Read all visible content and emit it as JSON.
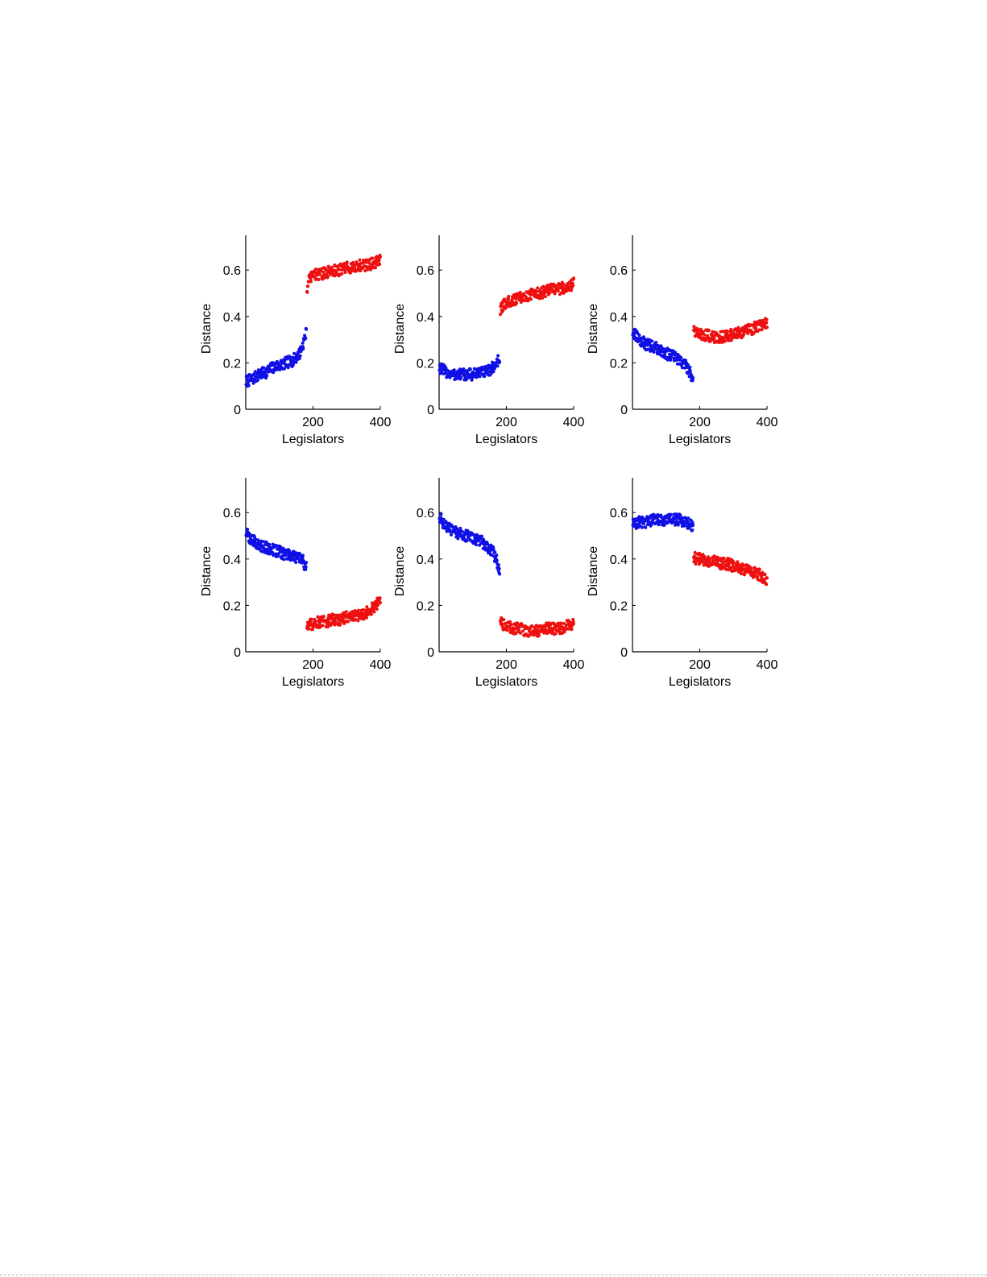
{
  "colors": {
    "democrat": "#1010e6",
    "republican": "#ee1010",
    "axis": "#000000"
  },
  "chart_data": [
    {
      "type": "scatter",
      "xlabel": "Legislators",
      "ylabel": "Distance",
      "xlim": [
        0,
        400
      ],
      "ylim": [
        0,
        0.75
      ],
      "xticks": [
        200,
        400
      ],
      "xtick_labels": [
        "200",
        "400"
      ],
      "yticks": [
        0,
        0.2,
        0.4,
        0.6
      ],
      "ytick_labels": [
        "0",
        "0.2",
        "0.4",
        "0.6"
      ],
      "grid": false,
      "series": [
        {
          "color": "blue",
          "x": [
            1,
            20,
            40,
            60,
            80,
            100,
            120,
            140,
            160,
            170,
            180
          ],
          "y": [
            0.12,
            0.13,
            0.15,
            0.16,
            0.18,
            0.19,
            0.2,
            0.21,
            0.24,
            0.28,
            0.33
          ]
        },
        {
          "color": "red",
          "x": [
            182,
            190,
            200,
            220,
            240,
            260,
            280,
            300,
            320,
            340,
            360,
            380,
            400
          ],
          "y": [
            0.52,
            0.56,
            0.58,
            0.58,
            0.59,
            0.6,
            0.6,
            0.61,
            0.61,
            0.62,
            0.62,
            0.63,
            0.64
          ]
        }
      ]
    },
    {
      "type": "scatter",
      "xlabel": "Legislators",
      "ylabel": "Distance",
      "xlim": [
        0,
        400
      ],
      "ylim": [
        0,
        0.75
      ],
      "xticks": [
        200,
        400
      ],
      "xtick_labels": [
        "200",
        "400"
      ],
      "yticks": [
        0,
        0.2,
        0.4,
        0.6
      ],
      "ytick_labels": [
        "0",
        "0.2",
        "0.4",
        "0.6"
      ],
      "grid": false,
      "series": [
        {
          "color": "blue",
          "x": [
            1,
            20,
            40,
            60,
            80,
            100,
            120,
            140,
            160,
            170,
            180
          ],
          "y": [
            0.18,
            0.16,
            0.15,
            0.15,
            0.15,
            0.15,
            0.16,
            0.16,
            0.18,
            0.2,
            0.22
          ]
        },
        {
          "color": "red",
          "x": [
            182,
            190,
            200,
            220,
            240,
            260,
            280,
            300,
            320,
            340,
            360,
            380,
            400
          ],
          "y": [
            0.42,
            0.45,
            0.46,
            0.47,
            0.48,
            0.49,
            0.5,
            0.5,
            0.51,
            0.52,
            0.52,
            0.53,
            0.54
          ]
        }
      ]
    },
    {
      "type": "scatter",
      "xlabel": "Legislators",
      "ylabel": "Distance",
      "xlim": [
        0,
        400
      ],
      "ylim": [
        0,
        0.75
      ],
      "xticks": [
        200,
        400
      ],
      "xtick_labels": [
        "200",
        "400"
      ],
      "yticks": [
        0,
        0.2,
        0.4,
        0.6
      ],
      "ytick_labels": [
        "0",
        "0.2",
        "0.4",
        "0.6"
      ],
      "grid": false,
      "series": [
        {
          "color": "blue",
          "x": [
            1,
            20,
            40,
            60,
            80,
            100,
            120,
            140,
            160,
            170,
            180
          ],
          "y": [
            0.33,
            0.3,
            0.28,
            0.27,
            0.26,
            0.24,
            0.23,
            0.21,
            0.19,
            0.16,
            0.13
          ]
        },
        {
          "color": "red",
          "x": [
            182,
            190,
            200,
            220,
            240,
            260,
            280,
            300,
            320,
            340,
            360,
            380,
            400
          ],
          "y": [
            0.35,
            0.33,
            0.32,
            0.32,
            0.31,
            0.31,
            0.32,
            0.32,
            0.33,
            0.34,
            0.35,
            0.36,
            0.37
          ]
        }
      ]
    },
    {
      "type": "scatter",
      "xlabel": "Legislators",
      "ylabel": "Distance",
      "xlim": [
        0,
        400
      ],
      "ylim": [
        0,
        0.75
      ],
      "xticks": [
        200,
        400
      ],
      "xtick_labels": [
        "200",
        "400"
      ],
      "yticks": [
        0,
        0.2,
        0.4,
        0.6
      ],
      "ytick_labels": [
        "0",
        "0.2",
        "0.4",
        "0.6"
      ],
      "grid": false,
      "series": [
        {
          "color": "blue",
          "x": [
            1,
            20,
            40,
            60,
            80,
            100,
            120,
            140,
            160,
            170,
            180
          ],
          "y": [
            0.51,
            0.48,
            0.46,
            0.45,
            0.44,
            0.43,
            0.42,
            0.41,
            0.4,
            0.39,
            0.36
          ]
        },
        {
          "color": "red",
          "x": [
            182,
            190,
            200,
            220,
            240,
            260,
            280,
            300,
            320,
            340,
            360,
            380,
            400
          ],
          "y": [
            0.11,
            0.12,
            0.12,
            0.13,
            0.13,
            0.14,
            0.14,
            0.15,
            0.15,
            0.16,
            0.17,
            0.19,
            0.22
          ]
        }
      ]
    },
    {
      "type": "scatter",
      "xlabel": "Legislators",
      "ylabel": "Distance",
      "xlim": [
        0,
        400
      ],
      "ylim": [
        0,
        0.75
      ],
      "xticks": [
        200,
        400
      ],
      "xtick_labels": [
        "200",
        "400"
      ],
      "yticks": [
        0,
        0.2,
        0.4,
        0.6
      ],
      "ytick_labels": [
        "0",
        "0.2",
        "0.4",
        "0.6"
      ],
      "grid": false,
      "series": [
        {
          "color": "blue",
          "x": [
            1,
            20,
            40,
            60,
            80,
            100,
            120,
            140,
            160,
            170,
            180
          ],
          "y": [
            0.58,
            0.54,
            0.52,
            0.51,
            0.5,
            0.49,
            0.48,
            0.46,
            0.43,
            0.4,
            0.34
          ]
        },
        {
          "color": "red",
          "x": [
            182,
            190,
            200,
            220,
            240,
            260,
            280,
            300,
            320,
            340,
            360,
            380,
            400
          ],
          "y": [
            0.14,
            0.12,
            0.11,
            0.1,
            0.1,
            0.09,
            0.09,
            0.09,
            0.1,
            0.1,
            0.1,
            0.11,
            0.12
          ]
        }
      ]
    },
    {
      "type": "scatter",
      "xlabel": "Legislators",
      "ylabel": "Distance",
      "xlim": [
        0,
        400
      ],
      "ylim": [
        0,
        0.75
      ],
      "xticks": [
        200,
        400
      ],
      "xtick_labels": [
        "200",
        "400"
      ],
      "yticks": [
        0,
        0.2,
        0.4,
        0.6
      ],
      "ytick_labels": [
        "0",
        "0.2",
        "0.4",
        "0.6"
      ],
      "grid": false,
      "series": [
        {
          "color": "blue",
          "x": [
            1,
            20,
            40,
            60,
            80,
            100,
            120,
            140,
            160,
            170,
            180
          ],
          "y": [
            0.55,
            0.56,
            0.56,
            0.57,
            0.57,
            0.57,
            0.57,
            0.57,
            0.56,
            0.55,
            0.53
          ]
        },
        {
          "color": "red",
          "x": [
            182,
            190,
            200,
            220,
            240,
            260,
            280,
            300,
            320,
            340,
            360,
            380,
            400
          ],
          "y": [
            0.41,
            0.4,
            0.4,
            0.39,
            0.39,
            0.38,
            0.38,
            0.37,
            0.36,
            0.35,
            0.34,
            0.33,
            0.31
          ]
        }
      ]
    }
  ]
}
